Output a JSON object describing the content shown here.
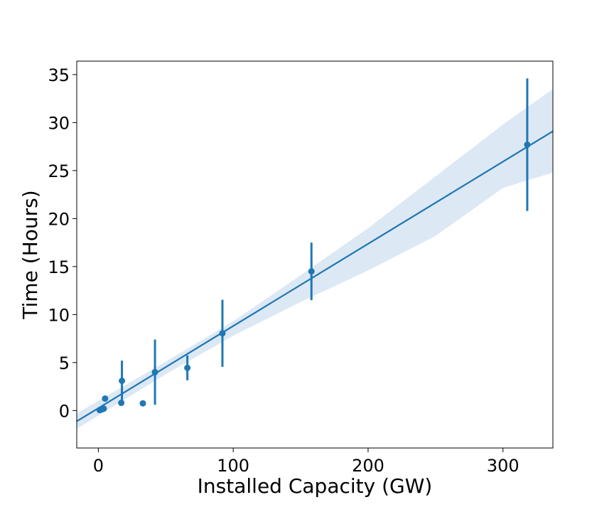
{
  "chart_data": {
    "type": "scatter",
    "title": "",
    "xlabel": "Installed Capacity (GW)",
    "ylabel": "Time (Hours)",
    "xlim": [
      -16,
      337
    ],
    "ylim": [
      -3.9,
      36.4
    ],
    "xticks": [
      0,
      100,
      200,
      300
    ],
    "xtick_labels": [
      "0",
      "100",
      "200",
      "300"
    ],
    "yticks": [
      0,
      5,
      10,
      15,
      20,
      25,
      30,
      35
    ],
    "ytick_labels": [
      "0",
      "5",
      "10",
      "15",
      "20",
      "25",
      "30",
      "35"
    ],
    "grid": false,
    "points": [
      {
        "x": 1.0,
        "y": 0.05,
        "err": 0
      },
      {
        "x": 2.0,
        "y": 0.1,
        "err": 0
      },
      {
        "x": 3.0,
        "y": 0.15,
        "err": 0
      },
      {
        "x": 4.0,
        "y": 0.2,
        "err": 0
      },
      {
        "x": 5.0,
        "y": 1.25,
        "err": 0.3
      },
      {
        "x": 17.0,
        "y": 0.8,
        "err": 0
      },
      {
        "x": 17.5,
        "y": 3.1,
        "err": 2.1
      },
      {
        "x": 33.0,
        "y": 0.75,
        "err": 0
      },
      {
        "x": 42.0,
        "y": 4.0,
        "err": 3.4
      },
      {
        "x": 66.0,
        "y": 4.45,
        "err": 1.3
      },
      {
        "x": 92.0,
        "y": 8.05,
        "err": 3.5
      },
      {
        "x": 158.0,
        "y": 14.5,
        "err": 3.0
      },
      {
        "x": 318.0,
        "y": 27.7,
        "err": 6.9
      }
    ],
    "regression": {
      "slope": 0.0856,
      "intercept": 0.25,
      "band": [
        {
          "x": -16,
          "lo": -1.9,
          "hi": -0.3
        },
        {
          "x": 50,
          "lo": 3.8,
          "hi": 5.1
        },
        {
          "x": 100,
          "lo": 7.8,
          "hi": 9.3
        },
        {
          "x": 150,
          "lo": 11.3,
          "hi": 14.1
        },
        {
          "x": 200,
          "lo": 14.6,
          "hi": 19.0
        },
        {
          "x": 250,
          "lo": 18.2,
          "hi": 24.4
        },
        {
          "x": 300,
          "lo": 23.2,
          "hi": 29.8
        },
        {
          "x": 337,
          "lo": 24.8,
          "hi": 33.5
        }
      ]
    },
    "colors": {
      "series": "#1f77b4",
      "band": "#dce8f4"
    }
  }
}
